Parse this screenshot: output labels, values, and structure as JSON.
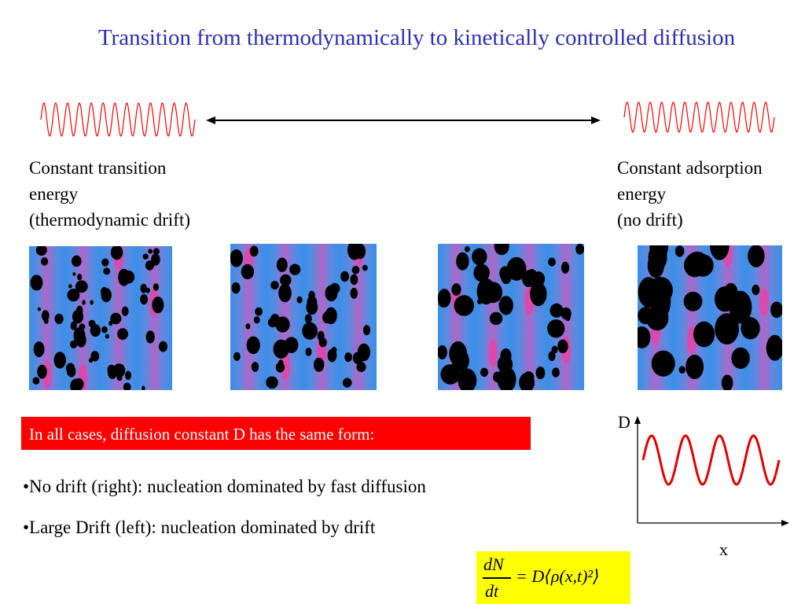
{
  "title": "Transition from thermodynamically to kinetically controlled diffusion",
  "left_label": [
    "Constant transition",
    "energy",
    "(thermodynamic drift)"
  ],
  "right_label": [
    "Constant adsorption",
    "energy",
    "(no drift)"
  ],
  "banner": "In all cases, diffusion constant D has the same form:",
  "bullets": [
    "•No drift (right): nucleation dominated by fast diffusion",
    "•Large Drift (left): nucleation dominated by drift"
  ],
  "graph": {
    "y_axis": "D",
    "x_axis": "x"
  },
  "formula": {
    "numerator": "dN",
    "denominator": "dt",
    "rhs": "= D⟨ρ(x,t)²⟩"
  },
  "colors": {
    "title": "#2f2fb5",
    "banner": "#ff0000",
    "wave": "#ff0000",
    "formula_bg": "#ffff00"
  }
}
